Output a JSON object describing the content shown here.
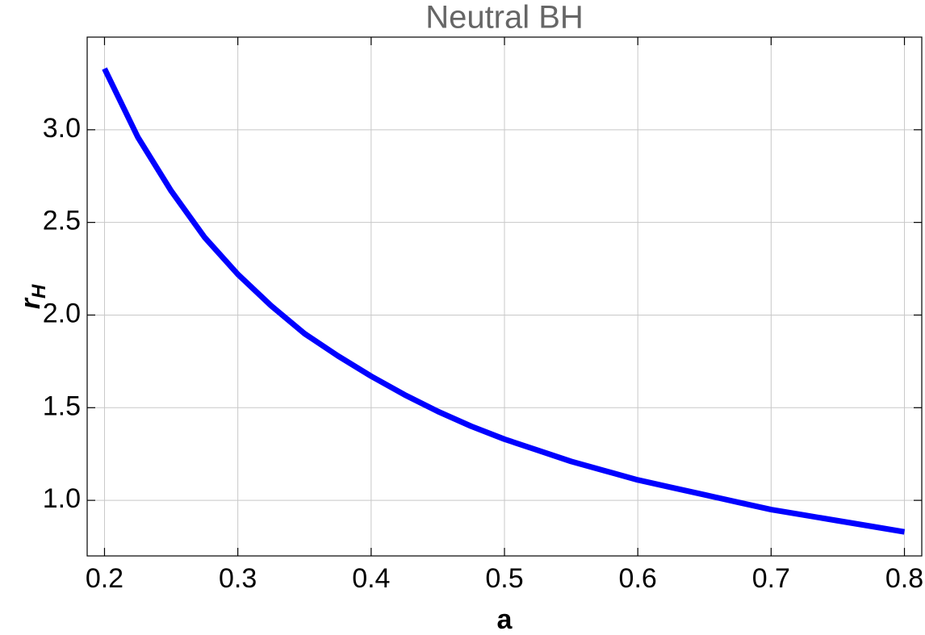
{
  "chart_data": {
    "type": "line",
    "title": "Neutral BH",
    "xlabel": "a",
    "ylabel": {
      "text": "r",
      "subscript": "H"
    },
    "x": [
      0.2,
      0.225,
      0.25,
      0.275,
      0.3,
      0.325,
      0.35,
      0.375,
      0.4,
      0.425,
      0.45,
      0.475,
      0.5,
      0.525,
      0.55,
      0.575,
      0.6,
      0.625,
      0.65,
      0.675,
      0.7,
      0.725,
      0.75,
      0.775,
      0.8
    ],
    "series": [
      {
        "color": "#0000ff",
        "values": [
          3.33,
          2.96,
          2.67,
          2.42,
          2.22,
          2.05,
          1.9,
          1.78,
          1.67,
          1.57,
          1.48,
          1.4,
          1.33,
          1.27,
          1.21,
          1.16,
          1.11,
          1.07,
          1.03,
          0.99,
          0.95,
          0.92,
          0.89,
          0.86,
          0.83
        ]
      }
    ],
    "xlim": [
      0.187,
      0.813
    ],
    "ylim": [
      0.7,
      3.5
    ],
    "xticks": [
      0.2,
      0.3,
      0.4,
      0.5,
      0.6,
      0.7,
      0.8
    ],
    "yticks": [
      {
        "value": 1,
        "label": "1.0"
      },
      1.5,
      {
        "value": 2,
        "label": "2.0"
      },
      2.5,
      {
        "value": 3,
        "label": "3.0"
      }
    ],
    "grid": true
  }
}
